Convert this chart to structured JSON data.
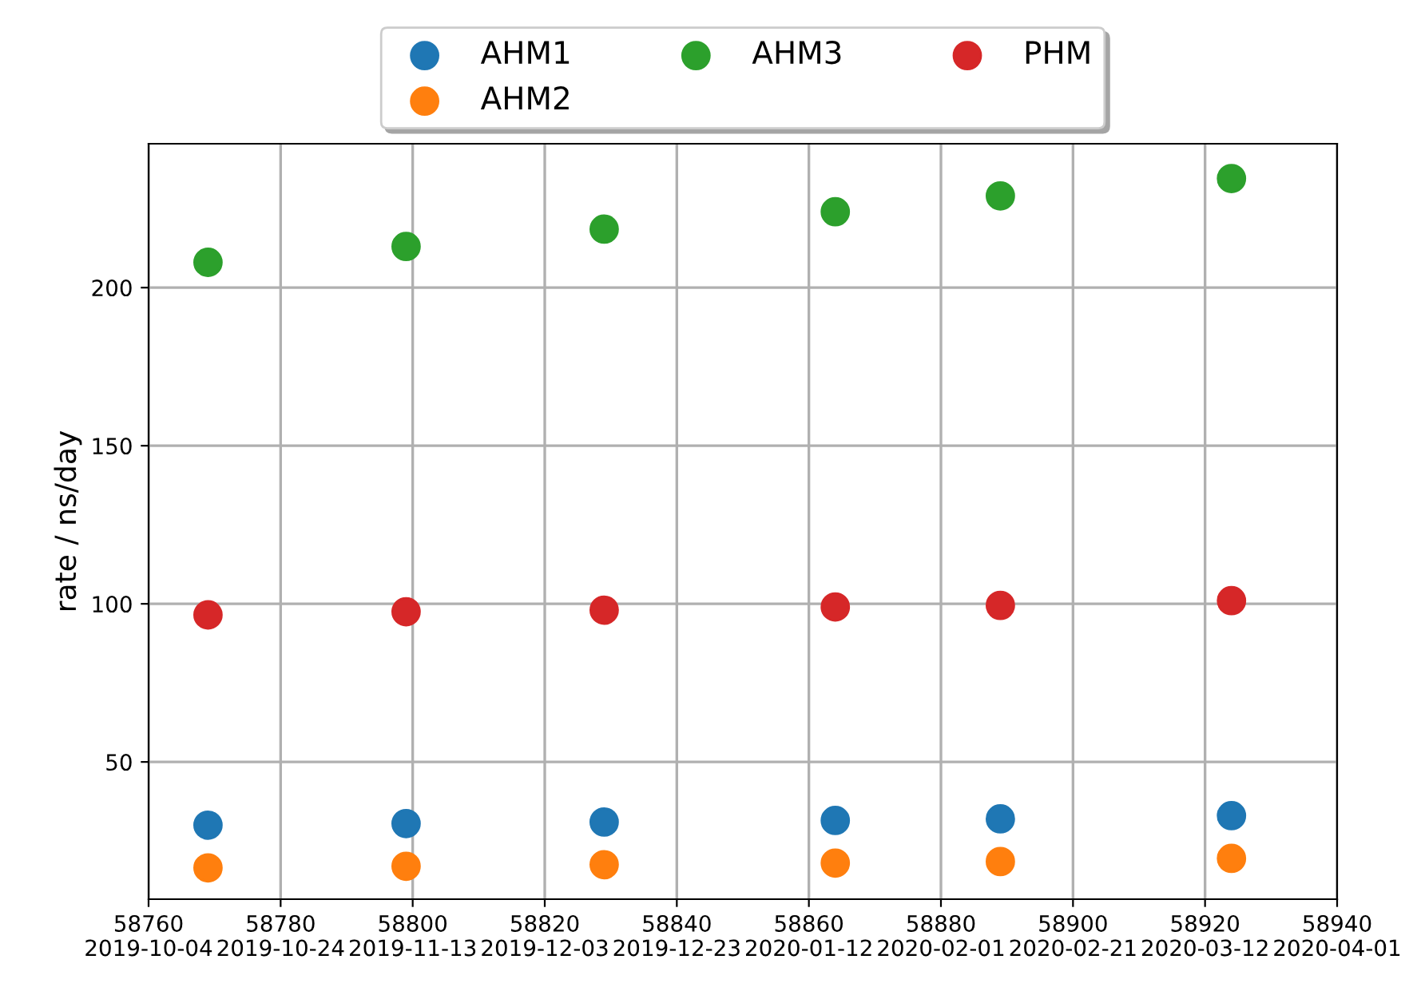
{
  "chart_data": {
    "type": "scatter",
    "ylabel": "rate / ns/day",
    "x": [
      58769,
      58799,
      58829,
      58864,
      58889,
      58924
    ],
    "series": [
      {
        "name": "AHM1",
        "color": "#1f77b4",
        "values": [
          30,
          30.5,
          31,
          31.5,
          32,
          33
        ]
      },
      {
        "name": "AHM2",
        "color": "#ff7f0e",
        "values": [
          16.5,
          17,
          17.5,
          18,
          18.5,
          19.5
        ]
      },
      {
        "name": "AHM3",
        "color": "#2ca02c",
        "values": [
          208,
          213,
          218.5,
          224,
          229,
          234.5
        ]
      },
      {
        "name": "PHM",
        "color": "#d62728",
        "values": [
          96.5,
          97.5,
          98,
          99,
          99.5,
          101
        ]
      }
    ],
    "xlim": [
      58760,
      58940
    ],
    "xticks": [
      58760,
      58780,
      58800,
      58820,
      58840,
      58860,
      58880,
      58900,
      58920,
      58940
    ],
    "x2lim": [
      "2019-10-04",
      "2020-04-01"
    ],
    "x2ticks": [
      "2019-10-04",
      "2019-10-24",
      "2019-11-13",
      "2019-12-03",
      "2019-12-23",
      "2020-01-12",
      "2020-02-01",
      "2020-02-21",
      "2020-03-12",
      "2020-04-01"
    ],
    "ylim": [
      6.6,
      245.5
    ],
    "yticks": [
      50,
      100,
      150,
      200
    ],
    "grid": true,
    "legend": "top",
    "marker": "circle"
  }
}
